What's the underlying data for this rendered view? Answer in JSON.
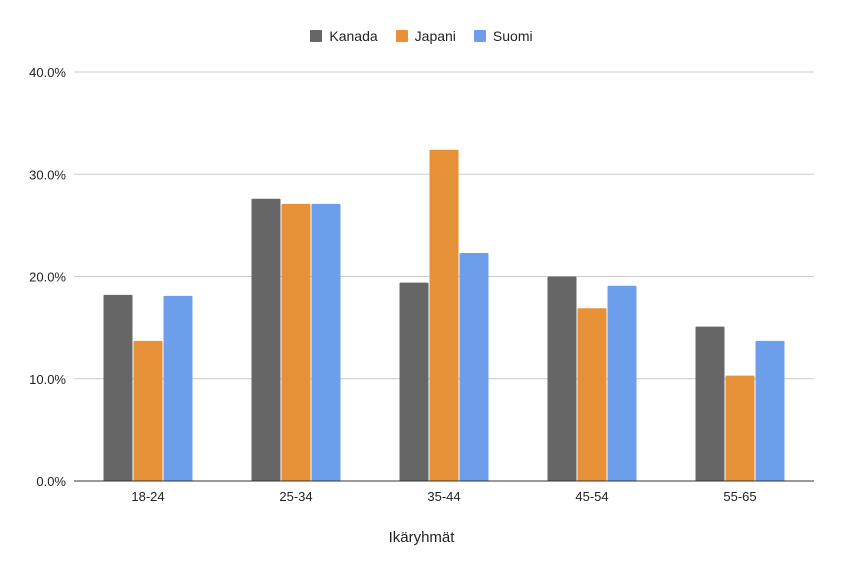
{
  "chart_data": {
    "type": "bar",
    "categories": [
      "18-24",
      "25-34",
      "35-44",
      "45-54",
      "55-65"
    ],
    "series": [
      {
        "name": "Kanada",
        "color": "#666666",
        "values": [
          18.2,
          27.6,
          19.4,
          20.0,
          15.1
        ]
      },
      {
        "name": "Japani",
        "color": "#e69138",
        "values": [
          13.7,
          27.1,
          32.4,
          16.9,
          10.3
        ]
      },
      {
        "name": "Suomi",
        "color": "#6d9eeb",
        "values": [
          18.1,
          27.1,
          22.3,
          19.1,
          13.7
        ]
      }
    ],
    "title": "",
    "xlabel": "Ikäryhmät",
    "ylabel": "",
    "ylim": [
      0,
      40
    ],
    "yticks": [
      "0.0%",
      "10.0%",
      "20.0%",
      "30.0%",
      "40.0%"
    ],
    "grid": true,
    "legend_position": "top"
  }
}
